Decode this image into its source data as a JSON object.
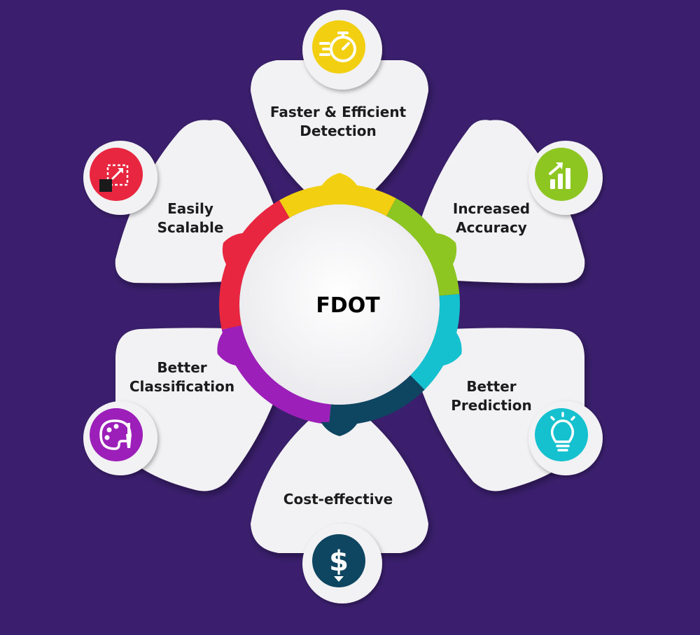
{
  "center": {
    "title": "FDOT"
  },
  "colors": {
    "background": "#3b1f6e",
    "petal": "#f2f1f4",
    "ring_yellow": "#f2cf10",
    "ring_green": "#8dc521",
    "ring_cyan": "#15c1cf",
    "ring_navy": "#0e4560",
    "ring_purple": "#9b1fb8",
    "ring_red": "#e8263f"
  },
  "features": [
    {
      "label_line1": "Faster & Efficient",
      "label_line2": "Detection",
      "icon": "stopwatch-icon",
      "color": "#f2cf10"
    },
    {
      "label_line1": "Increased",
      "label_line2": "Accuracy",
      "icon": "growth-chart-icon",
      "color": "#8dc521"
    },
    {
      "label_line1": "Better",
      "label_line2": "Prediction",
      "icon": "lightbulb-icon",
      "color": "#15c1cf"
    },
    {
      "label_line1": "Cost-effective",
      "label_line2": "",
      "icon": "dollar-icon",
      "color": "#0e4560"
    },
    {
      "label_line1": "Better",
      "label_line2": "Classification",
      "icon": "palette-icon",
      "color": "#9b1fb8"
    },
    {
      "label_line1": "Easily",
      "label_line2": "Scalable",
      "icon": "scale-expand-icon",
      "color": "#e8263f"
    }
  ]
}
